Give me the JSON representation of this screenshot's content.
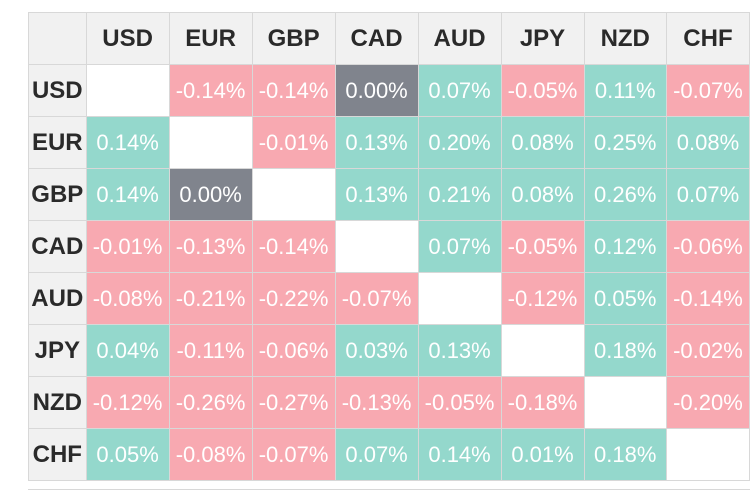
{
  "currencies": [
    "USD",
    "EUR",
    "GBP",
    "CAD",
    "AUD",
    "JPY",
    "NZD",
    "CHF"
  ],
  "colors": {
    "positive": "#94d8cc",
    "negative": "#f8a9b1",
    "zero": "#80848d",
    "self": "#ffffff",
    "header_bg": "#f1f1f1"
  },
  "rows": [
    {
      "currency": "USD",
      "values": [
        null,
        "-0.14%",
        "-0.14%",
        "0.00%",
        "0.07%",
        "-0.05%",
        "0.11%",
        "-0.07%"
      ]
    },
    {
      "currency": "EUR",
      "values": [
        "0.14%",
        null,
        "-0.01%",
        "0.13%",
        "0.20%",
        "0.08%",
        "0.25%",
        "0.08%"
      ]
    },
    {
      "currency": "GBP",
      "values": [
        "0.14%",
        "0.00%",
        null,
        "0.13%",
        "0.21%",
        "0.08%",
        "0.26%",
        "0.07%"
      ]
    },
    {
      "currency": "CAD",
      "values": [
        "-0.01%",
        "-0.13%",
        "-0.14%",
        null,
        "0.07%",
        "-0.05%",
        "0.12%",
        "-0.06%"
      ]
    },
    {
      "currency": "AUD",
      "values": [
        "-0.08%",
        "-0.21%",
        "-0.22%",
        "-0.07%",
        null,
        "-0.12%",
        "0.05%",
        "-0.14%"
      ]
    },
    {
      "currency": "JPY",
      "values": [
        "0.04%",
        "-0.11%",
        "-0.06%",
        "0.03%",
        "0.13%",
        null,
        "0.18%",
        "-0.02%"
      ]
    },
    {
      "currency": "NZD",
      "values": [
        "-0.12%",
        "-0.26%",
        "-0.27%",
        "-0.13%",
        "-0.05%",
        "-0.18%",
        null,
        "-0.20%"
      ]
    },
    {
      "currency": "CHF",
      "values": [
        "0.05%",
        "-0.08%",
        "-0.07%",
        "0.07%",
        "0.14%",
        "0.01%",
        "0.18%",
        null
      ]
    }
  ]
}
